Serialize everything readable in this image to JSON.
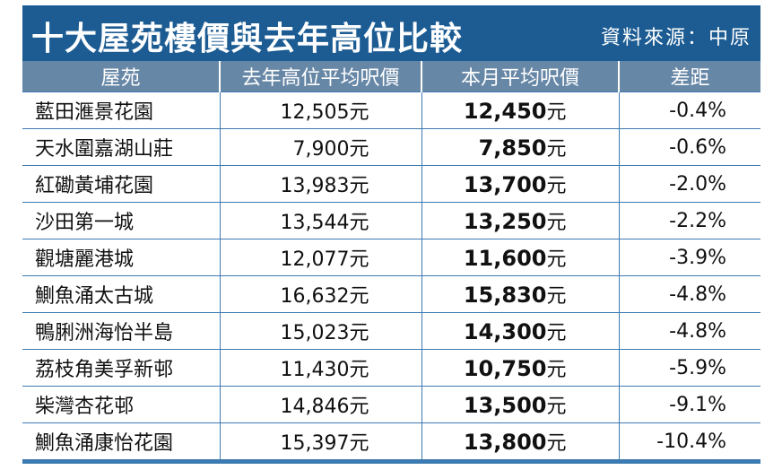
{
  "header": {
    "title": "十大屋苑樓價與去年高位比較",
    "source": "資料來源：中原"
  },
  "table": {
    "columns": [
      "屋苑",
      "去年高位平均呎價",
      "本月平均呎價",
      "差距"
    ],
    "rows": [
      [
        "藍田滙景花園",
        {
          "amount": "12,505",
          "unit": "元"
        },
        {
          "amount": "12,450",
          "unit": "元"
        },
        "-0.4%"
      ],
      [
        "天水圍嘉湖山莊",
        {
          "amount": "7,900",
          "unit": "元"
        },
        {
          "amount": "7,850",
          "unit": "元"
        },
        "-0.6%"
      ],
      [
        "紅磡黃埔花園",
        {
          "amount": "13,983",
          "unit": "元"
        },
        {
          "amount": "13,700",
          "unit": "元"
        },
        "-2.0%"
      ],
      [
        "沙田第一城",
        {
          "amount": "13,544",
          "unit": "元"
        },
        {
          "amount": "13,250",
          "unit": "元"
        },
        "-2.2%"
      ],
      [
        "觀塘麗港城",
        {
          "amount": "12,077",
          "unit": "元"
        },
        {
          "amount": "11,600",
          "unit": "元"
        },
        "-3.9%"
      ],
      [
        "鰂魚涌太古城",
        {
          "amount": "16,632",
          "unit": "元"
        },
        {
          "amount": "15,830",
          "unit": "元"
        },
        "-4.8%"
      ],
      [
        "鴨脷洲海怡半島",
        {
          "amount": "15,023",
          "unit": "元"
        },
        {
          "amount": "14,300",
          "unit": "元"
        },
        "-4.8%"
      ],
      [
        "荔枝角美孚新邨",
        {
          "amount": "11,430",
          "unit": "元"
        },
        {
          "amount": "10,750",
          "unit": "元"
        },
        "-5.9%"
      ],
      [
        "柴灣杏花邨",
        {
          "amount": "14,846",
          "unit": "元"
        },
        {
          "amount": "13,500",
          "unit": "元"
        },
        "-9.1%"
      ],
      [
        "鰂魚涌康怡花園",
        {
          "amount": "15,397",
          "unit": "元"
        },
        {
          "amount": "13,800",
          "unit": "元"
        },
        "-10.4%"
      ]
    ]
  }
}
